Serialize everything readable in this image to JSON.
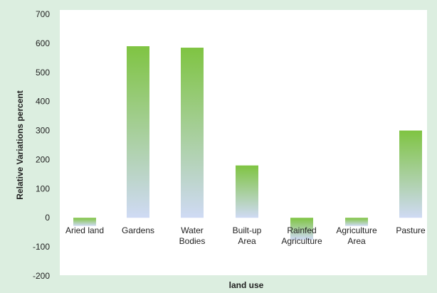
{
  "chart_data": {
    "type": "bar",
    "categories": [
      "Aried land",
      "Gardens",
      "Water Bodies",
      "Built-up Area",
      "Rainfed Agriculture",
      "Agriculture Area",
      "Pasture"
    ],
    "category_lines": [
      [
        "Aried land"
      ],
      [
        "Gardens"
      ],
      [
        "Water",
        "Bodies"
      ],
      [
        "Built-up",
        "Area"
      ],
      [
        "Rainfed",
        "Agriculture"
      ],
      [
        "Agriculture",
        "Area"
      ],
      [
        "Pasture"
      ]
    ],
    "values": [
      -28,
      590,
      585,
      180,
      -75,
      -28,
      300
    ],
    "title": "",
    "xlabel": "land use",
    "ylabel": "Relative Variations percent",
    "ylim": [
      -200,
      700
    ],
    "yticks": [
      -200,
      -100,
      0,
      100,
      200,
      300,
      400,
      500,
      600,
      700
    ],
    "grid": false,
    "legend": "none",
    "colors": {
      "bar_top": "#7fc442",
      "bar_bottom": "#cfdaf4",
      "plot_background": "#ffffff",
      "frame_background": "#dceee0",
      "text": "#222222"
    }
  }
}
